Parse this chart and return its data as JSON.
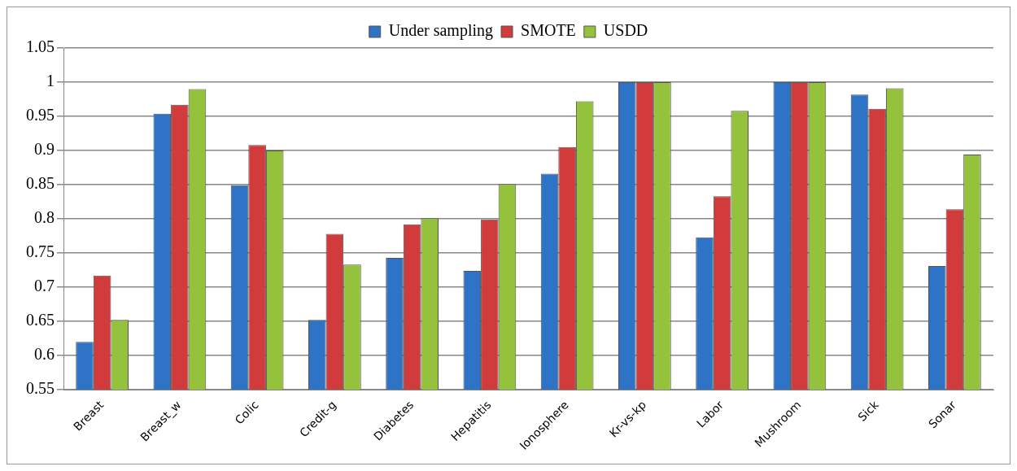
{
  "chart_data": {
    "type": "bar",
    "categories": [
      "Breast",
      "Breast_w",
      "Colic",
      "Credit-g",
      "Diabetes",
      "Hepatitis",
      "Ionosphere",
      "Kr-vs-kp",
      "Labor",
      "Mushroom",
      "Sick",
      "Sonar"
    ],
    "series": [
      {
        "name": "Under sampling",
        "color": "#2f73c6",
        "values": [
          0.62,
          0.954,
          0.849,
          0.652,
          0.743,
          0.724,
          0.866,
          1,
          0.773,
          1,
          0.982,
          0.731
        ]
      },
      {
        "name": "SMOTE",
        "color": "#d23b3b",
        "values": [
          0.717,
          0.967,
          0.908,
          0.778,
          0.792,
          0.799,
          0.905,
          1,
          0.833,
          1,
          0.961,
          0.814
        ]
      },
      {
        "name": "USDD",
        "color": "#95c23d",
        "values": [
          0.652,
          0.99,
          0.9,
          0.733,
          0.801,
          0.851,
          0.972,
          1,
          0.958,
          1,
          0.991,
          0.894
        ]
      }
    ],
    "ylim": [
      0.55,
      1.05
    ],
    "yticks": [
      0.55,
      0.6,
      0.65,
      0.7,
      0.75,
      0.8,
      0.85,
      0.9,
      0.95,
      1,
      1.05
    ],
    "grid": "y",
    "legend": "top"
  }
}
